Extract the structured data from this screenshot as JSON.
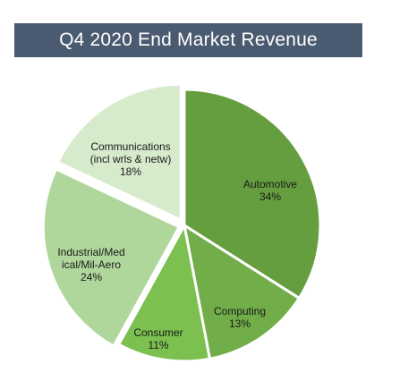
{
  "header": {
    "title": "Q4 2020 End Market Revenue"
  },
  "chart_data": {
    "type": "pie",
    "title": "Q4 2020 End Market Revenue",
    "slices": [
      {
        "name": "Automotive",
        "label_lines": [
          "Automotive"
        ],
        "percent_label": "34%",
        "value": 34,
        "color": "#659e3e"
      },
      {
        "name": "Computing",
        "label_lines": [
          "Computing"
        ],
        "percent_label": "13%",
        "value": 13,
        "color": "#71ad48"
      },
      {
        "name": "Consumer",
        "label_lines": [
          "Consumer"
        ],
        "percent_label": "11%",
        "value": 11,
        "color": "#7cc04f"
      },
      {
        "name": "Industrial/Medical/Mil-Aero",
        "label_lines": [
          "Industrial/Med",
          "ical/Mil-Aero"
        ],
        "percent_label": "24%",
        "value": 24,
        "color": "#b0d79b"
      },
      {
        "name": "Communications (incl wrls & netw)",
        "label_lines": [
          "Communications",
          "(incl wrls & netw)"
        ],
        "percent_label": "18%",
        "value": 18,
        "color": "#d6ebcb"
      }
    ]
  }
}
